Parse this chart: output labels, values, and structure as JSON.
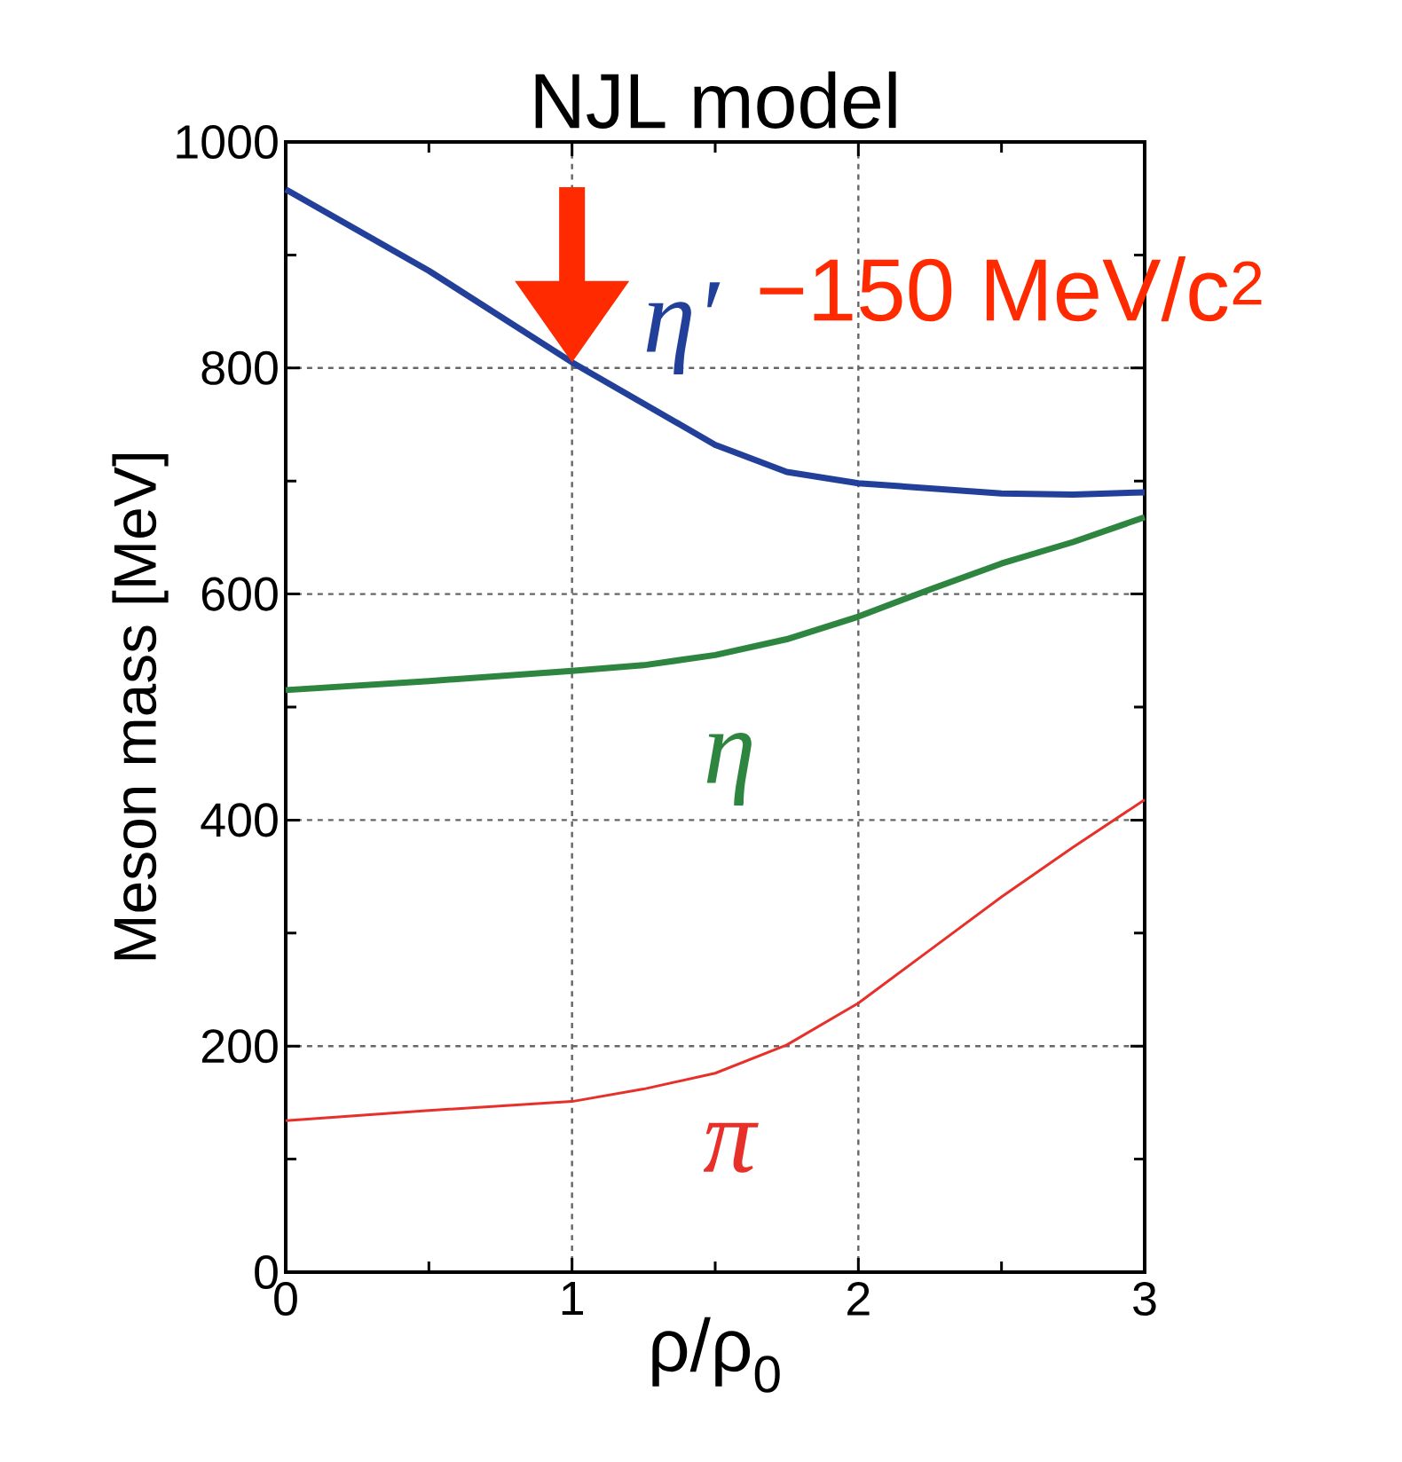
{
  "chart_data": {
    "type": "line",
    "title": "NJL model",
    "xlabel": "ρ/ρ$_{0}$",
    "ylabel": "Meson mass [MeV]",
    "xlim": [
      0,
      3
    ],
    "ylim": [
      0,
      1000
    ],
    "xticks": [
      0,
      1,
      2,
      3
    ],
    "yticks": [
      0,
      200,
      400,
      600,
      800,
      1000
    ],
    "grid": true,
    "series": [
      {
        "name": "η′",
        "color": "#22409a",
        "x": [
          0,
          0.5,
          1,
          1.5,
          1.75,
          2,
          2.5,
          2.75,
          3
        ],
        "values": [
          958,
          886,
          805,
          732,
          708,
          698,
          689,
          688,
          690
        ]
      },
      {
        "name": "η",
        "color": "#2e8540",
        "x": [
          0,
          0.5,
          1,
          1.25,
          1.5,
          1.75,
          2,
          2.25,
          2.5,
          2.75,
          3
        ],
        "values": [
          515,
          523,
          532,
          537,
          546,
          560,
          580,
          604,
          627,
          646,
          668
        ]
      },
      {
        "name": "π",
        "color": "#e8302a",
        "x": [
          0,
          0.5,
          1,
          1.25,
          1.5,
          1.75,
          2,
          2.25,
          2.5,
          2.75,
          3
        ],
        "values": [
          134,
          143,
          151,
          162,
          176,
          201,
          238,
          285,
          332,
          376,
          418
        ]
      }
    ],
    "annotations": [
      {
        "text": "−150 MeV/c$^{2}$",
        "x": 1,
        "y": 805
      }
    ]
  }
}
